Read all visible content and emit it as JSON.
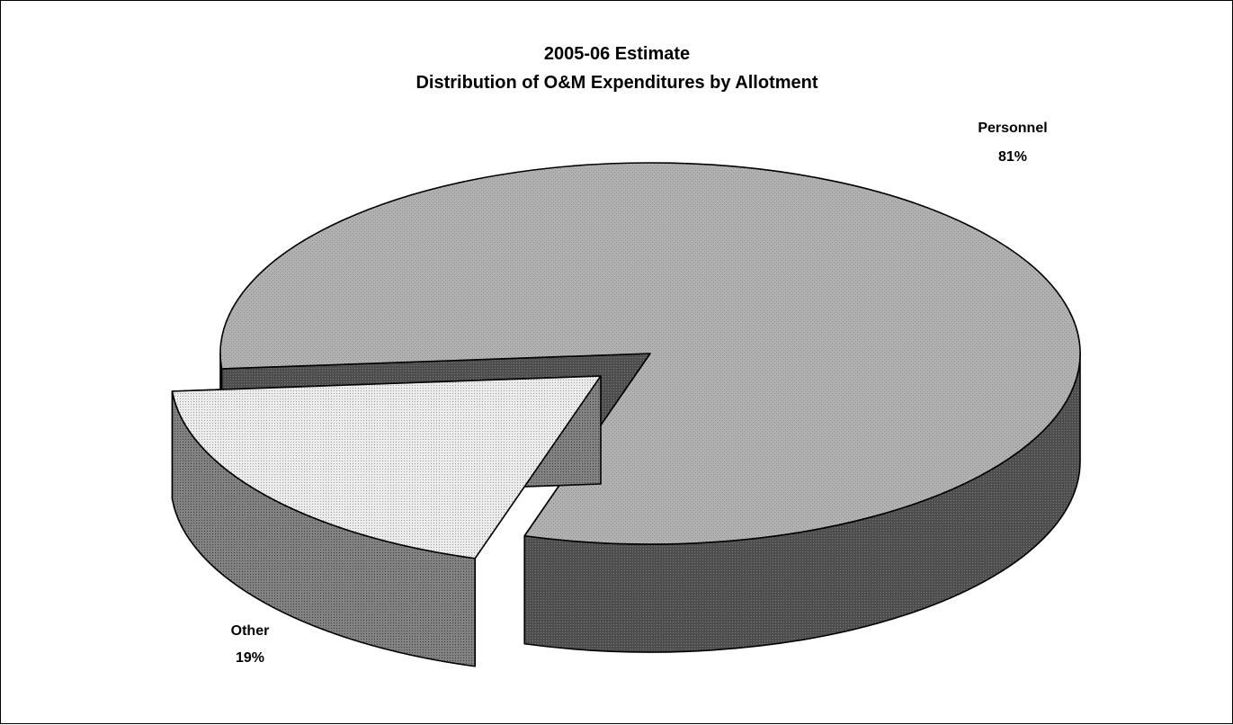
{
  "chart_data": {
    "type": "pie",
    "title": "2005-06 Estimate",
    "subtitle": "Distribution of O&M Expenditures by Allotment",
    "categories": [
      "Personnel",
      "Other"
    ],
    "values": [
      81,
      19
    ],
    "value_labels": [
      "81%",
      "19%"
    ],
    "three_d": true,
    "exploded": [
      "Other"
    ],
    "legend": "none",
    "colors": {
      "Personnel": {
        "top": "#a8a8a8",
        "side": "#5a5a5a"
      },
      "Other": {
        "top": "#e4e4e4",
        "side": "#7a7a7a"
      }
    }
  }
}
